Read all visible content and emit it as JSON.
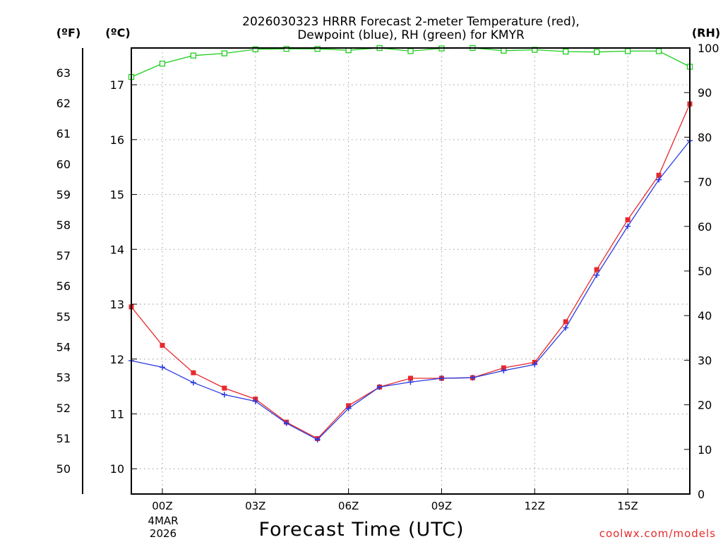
{
  "chart_data": {
    "type": "line",
    "title_line1": "2026030323 HRRR Forecast 2-meter Temperature (red),",
    "title_line2": "Dewpoint (blue), RH (green) for KMYR",
    "xlabel": "Forecast Time (UTC)",
    "credit": "coolwx.com/models",
    "unit_f": "(ºF)",
    "unit_c": "(ºC)",
    "unit_rh": "(RH)",
    "x": [
      -1,
      0,
      1,
      2,
      3,
      4,
      5,
      6,
      7,
      8,
      9,
      10,
      11,
      12,
      13,
      14,
      15,
      16,
      17
    ],
    "x_ticks": [
      {
        "value": 0,
        "label": "00Z"
      },
      {
        "value": 3,
        "label": "03Z"
      },
      {
        "value": 6,
        "label": "06Z"
      },
      {
        "value": 9,
        "label": "09Z"
      },
      {
        "value": 12,
        "label": "12Z"
      },
      {
        "value": 15,
        "label": "15Z"
      }
    ],
    "date_line1": "4MAR",
    "date_line2": "2026",
    "xlim": [
      -1,
      17
    ],
    "celsius_ylim": [
      9.54,
      17.67
    ],
    "celsius_ticks": [
      "10",
      "11",
      "12",
      "13",
      "14",
      "15",
      "16",
      "17"
    ],
    "fahrenheit_ticks": [
      "50",
      "51",
      "52",
      "53",
      "54",
      "55",
      "56",
      "57",
      "58",
      "59",
      "60",
      "61",
      "62",
      "63"
    ],
    "rh_ylim": [
      0,
      100
    ],
    "rh_ticks": [
      "0",
      "10",
      "20",
      "30",
      "40",
      "50",
      "60",
      "70",
      "80",
      "90",
      "100"
    ],
    "series": [
      {
        "name": "Temperature",
        "units": "C",
        "color": "#e8292b",
        "marker": "square",
        "values": [
          12.95,
          12.25,
          11.75,
          11.47,
          11.27,
          10.85,
          10.55,
          11.15,
          11.49,
          11.65,
          11.65,
          11.66,
          11.84,
          11.94,
          12.68,
          13.63,
          14.54,
          15.35,
          16.65
        ]
      },
      {
        "name": "Dewpoint",
        "units": "C",
        "color": "#2a3ae0",
        "marker": "plus",
        "values": [
          11.97,
          11.85,
          11.57,
          11.35,
          11.23,
          10.83,
          10.53,
          11.1,
          11.49,
          11.58,
          11.65,
          11.66,
          11.79,
          11.9,
          12.57,
          13.53,
          14.42,
          15.27,
          15.98
        ]
      },
      {
        "name": "RH",
        "units": "%",
        "color": "#1fce1f",
        "marker": "open-square",
        "values": [
          93.5,
          96.5,
          98.3,
          98.8,
          99.7,
          99.8,
          99.8,
          99.5,
          100.0,
          99.3,
          99.9,
          100.0,
          99.4,
          99.6,
          99.2,
          99.1,
          99.3,
          99.3,
          95.8
        ]
      }
    ]
  }
}
